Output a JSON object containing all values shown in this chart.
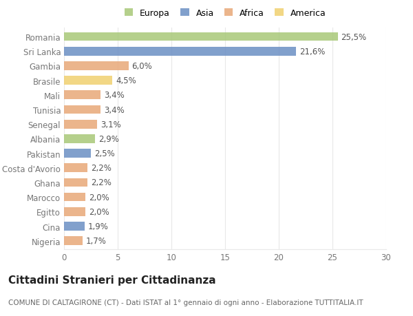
{
  "countries": [
    "Romania",
    "Sri Lanka",
    "Gambia",
    "Brasile",
    "Mali",
    "Tunisia",
    "Senegal",
    "Albania",
    "Pakistan",
    "Costa d'Avorio",
    "Ghana",
    "Marocco",
    "Egitto",
    "Cina",
    "Nigeria"
  ],
  "values": [
    25.5,
    21.6,
    6.0,
    4.5,
    3.4,
    3.4,
    3.1,
    2.9,
    2.5,
    2.2,
    2.2,
    2.0,
    2.0,
    1.9,
    1.7
  ],
  "labels": [
    "25,5%",
    "21,6%",
    "6,0%",
    "4,5%",
    "3,4%",
    "3,4%",
    "3,1%",
    "2,9%",
    "2,5%",
    "2,2%",
    "2,2%",
    "2,0%",
    "2,0%",
    "1,9%",
    "1,7%"
  ],
  "colors": [
    "#a8c878",
    "#6b8fc4",
    "#e8a878",
    "#f0d070",
    "#e8a878",
    "#e8a878",
    "#e8a878",
    "#a8c878",
    "#6b8fc4",
    "#e8a878",
    "#e8a878",
    "#e8a878",
    "#e8a878",
    "#6b8fc4",
    "#e8a878"
  ],
  "legend_labels": [
    "Europa",
    "Asia",
    "Africa",
    "America"
  ],
  "legend_colors": [
    "#a8c878",
    "#6b8fc4",
    "#e8a878",
    "#f0d070"
  ],
  "title": "Cittadini Stranieri per Cittadinanza",
  "subtitle": "COMUNE DI CALTAGIRONE (CT) - Dati ISTAT al 1° gennaio di ogni anno - Elaborazione TUTTITALIA.IT",
  "xlim": [
    0,
    30
  ],
  "xticks": [
    0,
    5,
    10,
    15,
    20,
    25,
    30
  ],
  "background_color": "#ffffff",
  "grid_color": "#e8e8e8",
  "bar_height": 0.6,
  "label_fontsize": 8.5,
  "tick_fontsize": 8.5,
  "title_fontsize": 11,
  "subtitle_fontsize": 7.5
}
